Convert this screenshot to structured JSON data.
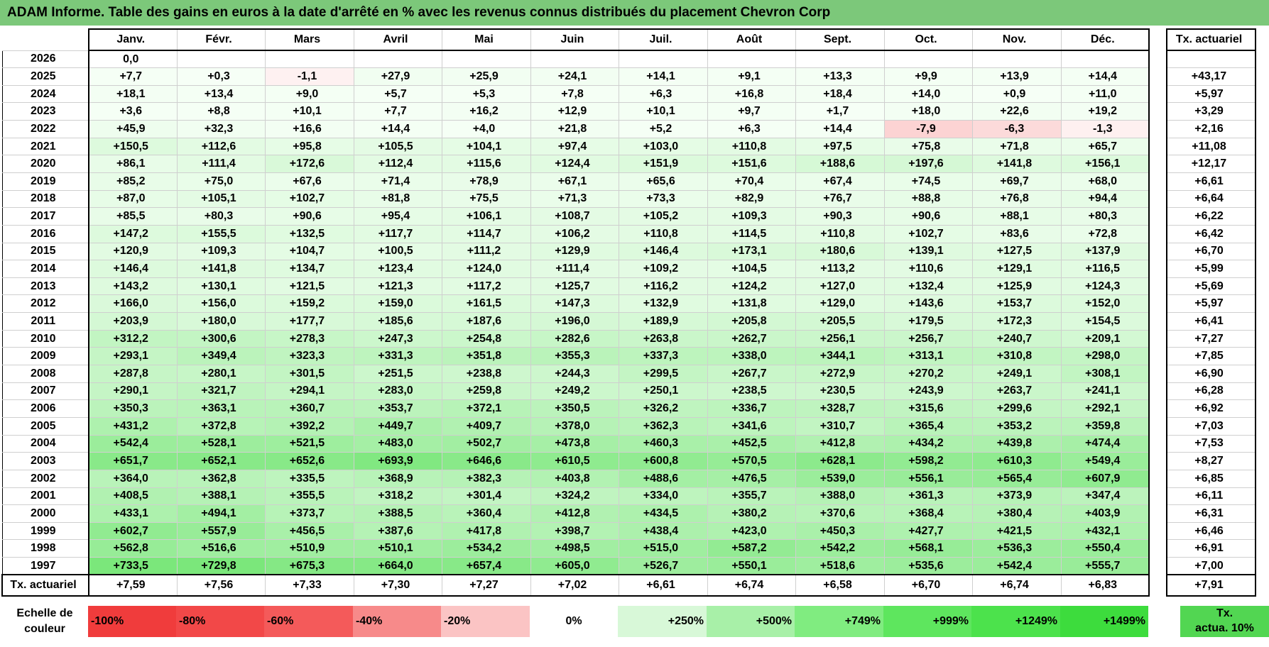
{
  "title": "ADAM Informe. Table des gains en euros à la date d'arrêté en % avec les revenus connus distribués du placement Chevron Corp",
  "months": [
    "Janv.",
    "Févr.",
    "Mars",
    "Avril",
    "Mai",
    "Juin",
    "Juil.",
    "Août",
    "Sept.",
    "Oct.",
    "Nov.",
    "Déc."
  ],
  "tx_header": "Tx. actuariel",
  "rows": [
    {
      "year": "2026",
      "values": [
        "0,0",
        "",
        "",
        "",
        "",
        "",
        "",
        "",
        "",
        "",
        "",
        ""
      ],
      "tx": ""
    },
    {
      "year": "2025",
      "values": [
        "+7,7",
        "+0,3",
        "-1,1",
        "+27,9",
        "+25,9",
        "+24,1",
        "+14,1",
        "+9,1",
        "+13,3",
        "+9,9",
        "+13,9",
        "+14,4"
      ],
      "tx": "+43,17"
    },
    {
      "year": "2024",
      "values": [
        "+18,1",
        "+13,4",
        "+9,0",
        "+5,7",
        "+5,3",
        "+7,8",
        "+6,3",
        "+16,8",
        "+18,4",
        "+14,0",
        "+0,9",
        "+11,0"
      ],
      "tx": "+5,97"
    },
    {
      "year": "2023",
      "values": [
        "+3,6",
        "+8,8",
        "+10,1",
        "+7,7",
        "+16,2",
        "+12,9",
        "+10,1",
        "+9,7",
        "+1,7",
        "+18,0",
        "+22,6",
        "+19,2"
      ],
      "tx": "+3,29"
    },
    {
      "year": "2022",
      "values": [
        "+45,9",
        "+32,3",
        "+16,6",
        "+14,4",
        "+4,0",
        "+21,8",
        "+5,2",
        "+6,3",
        "+14,4",
        "-7,9",
        "-6,3",
        "-1,3"
      ],
      "tx": "+2,16"
    },
    {
      "year": "2021",
      "values": [
        "+150,5",
        "+112,6",
        "+95,8",
        "+105,5",
        "+104,1",
        "+97,4",
        "+103,0",
        "+110,8",
        "+97,5",
        "+75,8",
        "+71,8",
        "+65,7"
      ],
      "tx": "+11,08"
    },
    {
      "year": "2020",
      "values": [
        "+86,1",
        "+111,4",
        "+172,6",
        "+112,4",
        "+115,6",
        "+124,4",
        "+151,9",
        "+151,6",
        "+188,6",
        "+197,6",
        "+141,8",
        "+156,1"
      ],
      "tx": "+12,17"
    },
    {
      "year": "2019",
      "values": [
        "+85,2",
        "+75,0",
        "+67,6",
        "+71,4",
        "+78,9",
        "+67,1",
        "+65,6",
        "+70,4",
        "+67,4",
        "+74,5",
        "+69,7",
        "+68,0"
      ],
      "tx": "+6,61"
    },
    {
      "year": "2018",
      "values": [
        "+87,0",
        "+105,1",
        "+102,7",
        "+81,8",
        "+75,5",
        "+71,3",
        "+73,3",
        "+82,9",
        "+76,7",
        "+88,8",
        "+76,8",
        "+94,4"
      ],
      "tx": "+6,64"
    },
    {
      "year": "2017",
      "values": [
        "+85,5",
        "+80,3",
        "+90,6",
        "+95,4",
        "+106,1",
        "+108,7",
        "+105,2",
        "+109,3",
        "+90,3",
        "+90,6",
        "+88,1",
        "+80,3"
      ],
      "tx": "+6,22"
    },
    {
      "year": "2016",
      "values": [
        "+147,2",
        "+155,5",
        "+132,5",
        "+117,7",
        "+114,7",
        "+106,2",
        "+110,8",
        "+114,5",
        "+110,8",
        "+102,7",
        "+83,6",
        "+72,8"
      ],
      "tx": "+6,42"
    },
    {
      "year": "2015",
      "values": [
        "+120,9",
        "+109,3",
        "+104,7",
        "+100,5",
        "+111,2",
        "+129,9",
        "+146,4",
        "+173,1",
        "+180,6",
        "+139,1",
        "+127,5",
        "+137,9"
      ],
      "tx": "+6,70"
    },
    {
      "year": "2014",
      "values": [
        "+146,4",
        "+141,8",
        "+134,7",
        "+123,4",
        "+124,0",
        "+111,4",
        "+109,2",
        "+104,5",
        "+113,2",
        "+110,6",
        "+129,1",
        "+116,5"
      ],
      "tx": "+5,99"
    },
    {
      "year": "2013",
      "values": [
        "+143,2",
        "+130,1",
        "+121,5",
        "+121,3",
        "+117,2",
        "+125,7",
        "+116,2",
        "+124,2",
        "+127,0",
        "+132,4",
        "+125,9",
        "+124,3"
      ],
      "tx": "+5,69"
    },
    {
      "year": "2012",
      "values": [
        "+166,0",
        "+156,0",
        "+159,2",
        "+159,0",
        "+161,5",
        "+147,3",
        "+132,9",
        "+131,8",
        "+129,0",
        "+143,6",
        "+153,7",
        "+152,0"
      ],
      "tx": "+5,97"
    },
    {
      "year": "2011",
      "values": [
        "+203,9",
        "+180,0",
        "+177,7",
        "+185,6",
        "+187,6",
        "+196,0",
        "+189,9",
        "+205,8",
        "+205,5",
        "+179,5",
        "+172,3",
        "+154,5"
      ],
      "tx": "+6,41"
    },
    {
      "year": "2010",
      "values": [
        "+312,2",
        "+300,6",
        "+278,3",
        "+247,3",
        "+254,8",
        "+282,6",
        "+263,8",
        "+262,7",
        "+256,1",
        "+256,7",
        "+240,7",
        "+209,1"
      ],
      "tx": "+7,27"
    },
    {
      "year": "2009",
      "values": [
        "+293,1",
        "+349,4",
        "+323,3",
        "+331,3",
        "+351,8",
        "+355,3",
        "+337,3",
        "+338,0",
        "+344,1",
        "+313,1",
        "+310,8",
        "+298,0"
      ],
      "tx": "+7,85"
    },
    {
      "year": "2008",
      "values": [
        "+287,8",
        "+280,1",
        "+301,5",
        "+251,5",
        "+238,8",
        "+244,3",
        "+299,5",
        "+267,7",
        "+272,9",
        "+270,2",
        "+249,1",
        "+308,1"
      ],
      "tx": "+6,90"
    },
    {
      "year": "2007",
      "values": [
        "+290,1",
        "+321,7",
        "+294,1",
        "+283,0",
        "+259,8",
        "+249,2",
        "+250,1",
        "+238,5",
        "+230,5",
        "+243,9",
        "+263,7",
        "+241,1"
      ],
      "tx": "+6,28"
    },
    {
      "year": "2006",
      "values": [
        "+350,3",
        "+363,1",
        "+360,7",
        "+353,7",
        "+372,1",
        "+350,5",
        "+326,2",
        "+336,7",
        "+328,7",
        "+315,6",
        "+299,6",
        "+292,1"
      ],
      "tx": "+6,92"
    },
    {
      "year": "2005",
      "values": [
        "+431,2",
        "+372,8",
        "+392,2",
        "+449,7",
        "+409,7",
        "+378,0",
        "+362,3",
        "+341,6",
        "+310,7",
        "+365,4",
        "+353,2",
        "+359,8"
      ],
      "tx": "+7,03"
    },
    {
      "year": "2004",
      "values": [
        "+542,4",
        "+528,1",
        "+521,5",
        "+483,0",
        "+502,7",
        "+473,8",
        "+460,3",
        "+452,5",
        "+412,8",
        "+434,2",
        "+439,8",
        "+474,4"
      ],
      "tx": "+7,53"
    },
    {
      "year": "2003",
      "values": [
        "+651,7",
        "+652,1",
        "+652,6",
        "+693,9",
        "+646,6",
        "+610,5",
        "+600,8",
        "+570,5",
        "+628,1",
        "+598,2",
        "+610,3",
        "+549,4"
      ],
      "tx": "+8,27"
    },
    {
      "year": "2002",
      "values": [
        "+364,0",
        "+362,8",
        "+335,5",
        "+368,9",
        "+382,3",
        "+403,8",
        "+488,6",
        "+476,5",
        "+539,0",
        "+556,1",
        "+565,4",
        "+607,9"
      ],
      "tx": "+6,85"
    },
    {
      "year": "2001",
      "values": [
        "+408,5",
        "+388,1",
        "+355,5",
        "+318,2",
        "+301,4",
        "+324,2",
        "+334,0",
        "+355,7",
        "+388,0",
        "+361,3",
        "+373,9",
        "+347,4"
      ],
      "tx": "+6,11"
    },
    {
      "year": "2000",
      "values": [
        "+433,1",
        "+494,1",
        "+373,7",
        "+388,5",
        "+360,4",
        "+412,8",
        "+434,5",
        "+380,2",
        "+370,6",
        "+368,4",
        "+380,4",
        "+403,9"
      ],
      "tx": "+6,31"
    },
    {
      "year": "1999",
      "values": [
        "+602,7",
        "+557,9",
        "+456,5",
        "+387,6",
        "+417,8",
        "+398,7",
        "+438,4",
        "+423,0",
        "+450,3",
        "+427,7",
        "+421,5",
        "+432,1"
      ],
      "tx": "+6,46"
    },
    {
      "year": "1998",
      "values": [
        "+562,8",
        "+516,6",
        "+510,9",
        "+510,1",
        "+534,2",
        "+498,5",
        "+515,0",
        "+587,2",
        "+542,2",
        "+568,1",
        "+536,3",
        "+550,4"
      ],
      "tx": "+6,91"
    },
    {
      "year": "1997",
      "values": [
        "+733,5",
        "+729,8",
        "+675,3",
        "+664,0",
        "+657,4",
        "+605,0",
        "+526,7",
        "+550,1",
        "+518,6",
        "+535,6",
        "+542,4",
        "+555,7"
      ],
      "tx": "+7,00"
    }
  ],
  "footer": {
    "label": "Tx. actuariel",
    "values": [
      "+7,59",
      "+7,56",
      "+7,33",
      "+7,30",
      "+7,27",
      "+7,02",
      "+6,61",
      "+6,74",
      "+6,58",
      "+6,70",
      "+6,74",
      "+6,83"
    ],
    "tx": "+7,91"
  },
  "legend": {
    "label_line1": "Echelle de",
    "label_line2": "couleur",
    "swatches": [
      {
        "label": "-100%",
        "color": "#f03c3c"
      },
      {
        "label": "-80%",
        "color": "#f24848"
      },
      {
        "label": "-60%",
        "color": "#f45a5a"
      },
      {
        "label": "-40%",
        "color": "#f78a8a"
      },
      {
        "label": "-20%",
        "color": "#fbc4c4"
      },
      {
        "label": "0%",
        "color": "#ffffff"
      },
      {
        "label": "+250%",
        "color": "#d8f8d8"
      },
      {
        "label": "+500%",
        "color": "#a8f0a8"
      },
      {
        "label": "+749%",
        "color": "#80ec80"
      },
      {
        "label": "+999%",
        "color": "#5ee65e"
      },
      {
        "label": "+1249%",
        "color": "#4ce24c"
      },
      {
        "label": "+1499%",
        "color": "#3ddc3d"
      }
    ],
    "tx_line1": "Tx.",
    "tx_line2": "actua. 10%",
    "tx_color": "#52d652"
  }
}
